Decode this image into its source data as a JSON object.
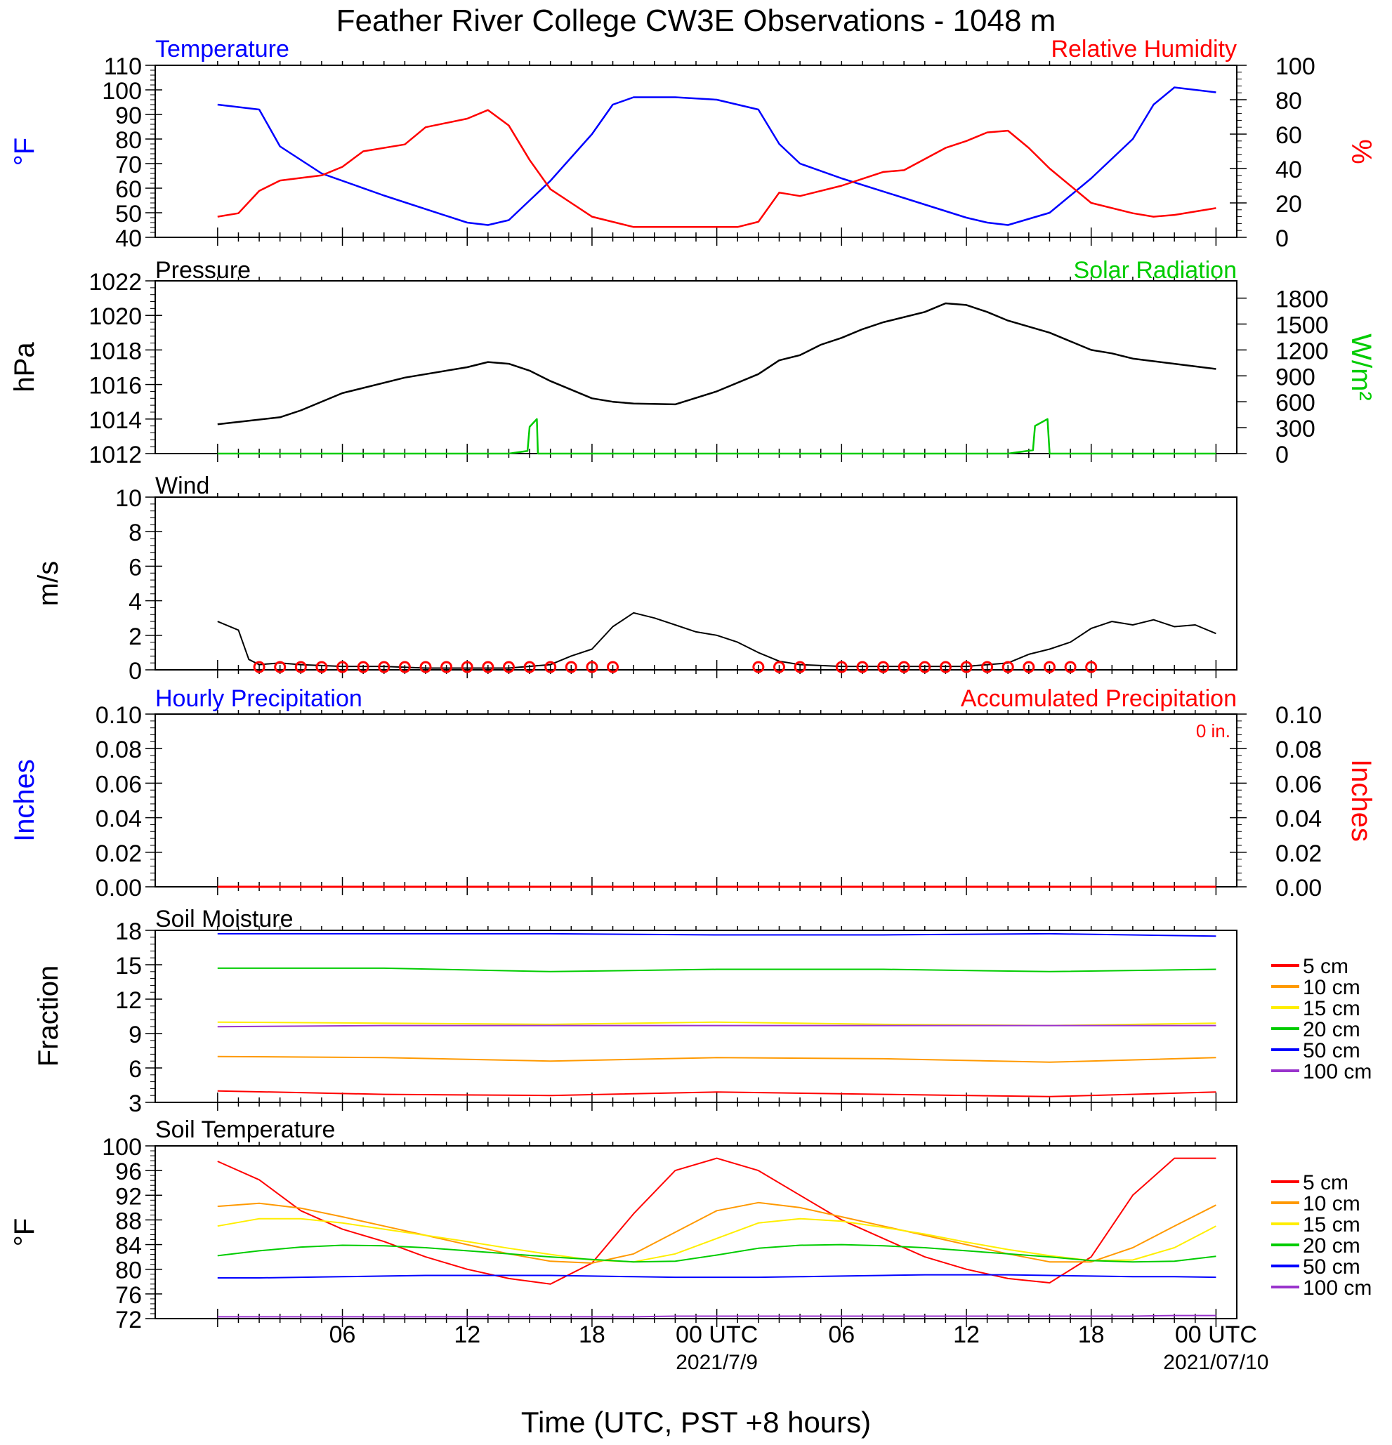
{
  "title": "Feather River College CW3E Observations - 1048 m",
  "x_axis": {
    "ticks": [
      "06",
      "12",
      "18",
      "00 UTC",
      "06",
      "12",
      "18",
      "00 UTC"
    ],
    "dates": [
      "2021/7/9",
      "2021/07/10"
    ],
    "label": "Time (UTC, PST +8 hours)"
  },
  "colors": {
    "blue": "#0000ff",
    "red": "#ff0000",
    "green": "#00cc00",
    "black": "#000000",
    "orange": "#ff9900",
    "yellow": "#ffee00",
    "purple": "#9933cc"
  },
  "chart_data": [
    {
      "type": "line",
      "name_left": "Temperature",
      "name_right": "Relative Humidity",
      "ylabel_left": "°F",
      "ylabel_right": "%",
      "ylim_left": [
        40,
        110
      ],
      "ylim_right": [
        0,
        100
      ],
      "yticks_left": [
        "110",
        "100",
        "90",
        "80",
        "70",
        "60",
        "50",
        "40"
      ],
      "yticks_right": [
        "100",
        "80",
        "60",
        "40",
        "20",
        "0"
      ],
      "x_hours": [
        0,
        2,
        3,
        5,
        8,
        12,
        13,
        14,
        16,
        18,
        19,
        20,
        22,
        24,
        26,
        27,
        28,
        30,
        33,
        36,
        37,
        38,
        40,
        42,
        44,
        45,
        46,
        48
      ],
      "temperature": [
        94,
        92,
        77,
        66,
        57,
        46,
        45,
        47,
        63,
        82,
        94,
        97,
        97,
        96,
        92,
        78,
        70,
        64,
        56,
        48,
        46,
        45,
        50,
        64,
        80,
        94,
        101,
        99
      ],
      "rh_hours": [
        0,
        1,
        2,
        3,
        5,
        6,
        7,
        9,
        10,
        12,
        13,
        14,
        15,
        16,
        17,
        18,
        20,
        22,
        24,
        25,
        26,
        27,
        28,
        30,
        31,
        32,
        33,
        35,
        36,
        37,
        38,
        39,
        40,
        42,
        44,
        45,
        46,
        48
      ],
      "relative_humidity": [
        12,
        14,
        27,
        33,
        36,
        41,
        50,
        54,
        64,
        69,
        74,
        65,
        45,
        28,
        20,
        12,
        6,
        6,
        6,
        6,
        9,
        26,
        24,
        30,
        34,
        38,
        39,
        52,
        56,
        61,
        62,
        52,
        40,
        20,
        14,
        12,
        13,
        17
      ]
    },
    {
      "type": "line",
      "name_left": "Pressure",
      "name_right": "Solar Radiation",
      "ylabel_left": "hPa",
      "ylabel_right": "W/m²",
      "ylim_left": [
        1012,
        1022
      ],
      "ylim_right": [
        0,
        2000
      ],
      "yticks_left": [
        "1022",
        "1020",
        "1018",
        "1016",
        "1014",
        "1012"
      ],
      "yticks_right": [
        "1800",
        "1500",
        "1200",
        "900",
        "600",
        "300",
        "0"
      ],
      "x_hours": [
        0,
        3,
        4,
        6,
        9,
        12,
        13,
        14,
        15,
        16,
        18,
        19,
        20,
        22,
        24,
        26,
        27,
        28,
        29,
        30,
        31,
        32,
        34,
        35,
        36,
        37,
        38,
        40,
        42,
        43,
        44,
        46,
        48
      ],
      "pressure": [
        1013.7,
        1014.1,
        1014.5,
        1015.5,
        1016.4,
        1017.0,
        1017.3,
        1017.2,
        1016.8,
        1016.2,
        1015.2,
        1015.0,
        1014.9,
        1014.85,
        1015.6,
        1016.6,
        1017.4,
        1017.7,
        1018.3,
        1018.7,
        1019.2,
        1019.6,
        1020.2,
        1020.7,
        1020.6,
        1020.2,
        1019.7,
        1019.0,
        1018.0,
        1017.8,
        1017.5,
        1017.2,
        1016.9
      ],
      "radiation_hours": [
        0,
        6,
        14,
        14.9,
        15,
        15.35,
        15.4,
        30,
        38,
        39.2,
        39.3,
        39.9,
        40,
        48
      ],
      "solar_radiation": [
        0,
        0,
        0,
        30,
        310,
        400,
        0,
        0,
        0,
        40,
        320,
        400,
        0,
        0
      ]
    },
    {
      "type": "line",
      "name": "Wind",
      "ylabel": "m/s",
      "ylim": [
        0,
        10
      ],
      "yticks": [
        "10",
        "8",
        "6",
        "4",
        "2",
        "0"
      ],
      "x_hours": [
        0,
        1,
        1.5,
        2,
        3,
        4,
        6,
        8,
        10,
        12,
        14,
        16,
        17,
        18,
        19,
        20,
        21,
        22,
        23,
        24,
        25,
        26,
        27,
        28,
        30,
        32,
        34,
        36,
        38,
        39,
        40,
        41,
        42,
        43,
        44,
        45,
        46,
        47,
        48
      ],
      "speed": [
        2.8,
        2.3,
        0.6,
        0.3,
        0.4,
        0.3,
        0.2,
        0.2,
        0.1,
        0.1,
        0.1,
        0.3,
        0.8,
        1.2,
        2.5,
        3.3,
        3.0,
        2.6,
        2.2,
        2.0,
        1.6,
        1.0,
        0.5,
        0.3,
        0.2,
        0.2,
        0.2,
        0.2,
        0.4,
        0.9,
        1.2,
        1.6,
        2.4,
        2.8,
        2.6,
        2.9,
        2.5,
        2.6,
        2.1
      ],
      "calm_hours": [
        2,
        3,
        4,
        5,
        6,
        7,
        8,
        9,
        10,
        11,
        12,
        13,
        14,
        15,
        16,
        17,
        18,
        19,
        26,
        27,
        28,
        30,
        31,
        32,
        33,
        34,
        35,
        36,
        37,
        38,
        39,
        40,
        41,
        42
      ]
    },
    {
      "type": "line",
      "name_left": "Hourly Precipitation",
      "name_right": "Accumulated Precipitation",
      "annotation": "0 in.",
      "ylabel_left": "Inches",
      "ylabel_right": "Inches",
      "ylim": [
        0,
        0.1
      ],
      "yticks_left": [
        "0.10",
        "0.08",
        "0.06",
        "0.04",
        "0.02",
        "0.00"
      ],
      "yticks_right": [
        "0.10",
        "0.08",
        "0.06",
        "0.04",
        "0.02",
        "0.00"
      ],
      "x_hours": [
        0,
        48
      ],
      "hourly": [
        0,
        0
      ],
      "accumulated": [
        0,
        0
      ]
    },
    {
      "type": "line",
      "name": "Soil Moisture",
      "ylabel": "Fraction",
      "ylim": [
        3,
        18
      ],
      "yticks": [
        "18",
        "15",
        "12",
        "9",
        "6",
        "3"
      ],
      "legend": [
        "5 cm",
        "10 cm",
        "15 cm",
        "20 cm",
        "50 cm",
        "100 cm"
      ],
      "x_hours": [
        0,
        8,
        16,
        24,
        32,
        40,
        48
      ],
      "series": [
        {
          "name": "5 cm",
          "values": [
            4.0,
            3.7,
            3.6,
            3.9,
            3.7,
            3.5,
            3.9
          ]
        },
        {
          "name": "10 cm",
          "values": [
            7.0,
            6.9,
            6.6,
            6.9,
            6.8,
            6.5,
            6.9
          ]
        },
        {
          "name": "15 cm",
          "values": [
            10.0,
            9.9,
            9.8,
            10.0,
            9.8,
            9.7,
            9.9
          ]
        },
        {
          "name": "20 cm",
          "values": [
            14.7,
            14.7,
            14.4,
            14.6,
            14.6,
            14.4,
            14.6
          ]
        },
        {
          "name": "50 cm",
          "values": [
            17.7,
            17.7,
            17.7,
            17.6,
            17.6,
            17.7,
            17.5
          ]
        },
        {
          "name": "100 cm",
          "values": [
            9.6,
            9.7,
            9.7,
            9.7,
            9.7,
            9.7,
            9.7
          ]
        }
      ]
    },
    {
      "type": "line",
      "name": "Soil Temperature",
      "ylabel": "°F",
      "ylim": [
        72,
        100
      ],
      "yticks": [
        "100",
        "96",
        "92",
        "88",
        "84",
        "80",
        "76",
        "72"
      ],
      "legend": [
        "5 cm",
        "10 cm",
        "15 cm",
        "20 cm",
        "50 cm",
        "100 cm"
      ],
      "x_hours": [
        0,
        2,
        4,
        6,
        8,
        10,
        12,
        14,
        16,
        18,
        20,
        22,
        24,
        26,
        28,
        30,
        32,
        34,
        36,
        38,
        40,
        42,
        44,
        46,
        48
      ],
      "series": [
        {
          "name": "5 cm",
          "values": [
            97.5,
            94.5,
            89.5,
            86.5,
            84.5,
            82,
            80,
            78.5,
            77.6,
            81,
            89,
            96,
            98,
            96,
            92,
            88,
            85,
            82,
            80,
            78.5,
            77.8,
            82,
            92,
            98,
            98
          ]
        },
        {
          "name": "10 cm",
          "values": [
            90.2,
            90.7,
            89.9,
            88.5,
            87,
            85.5,
            84,
            82.5,
            81.3,
            81,
            82.5,
            86,
            89.5,
            90.8,
            90,
            88.5,
            87,
            85.5,
            84,
            82.5,
            81.2,
            81.2,
            83.5,
            87,
            90.4
          ]
        },
        {
          "name": "15 cm",
          "values": [
            87,
            88.2,
            88.2,
            87.5,
            86.5,
            85.5,
            84.5,
            83.4,
            82.4,
            81.5,
            81.2,
            82.5,
            85,
            87.5,
            88.2,
            87.8,
            86.8,
            85.7,
            84.4,
            83.2,
            82.2,
            81.4,
            81.5,
            83.5,
            87
          ]
        },
        {
          "name": "20 cm",
          "values": [
            82.2,
            83,
            83.6,
            83.9,
            83.8,
            83.5,
            83,
            82.5,
            82,
            81.6,
            81.2,
            81.3,
            82.3,
            83.4,
            83.9,
            84,
            83.8,
            83.5,
            83,
            82.5,
            82,
            81.4,
            81.2,
            81.3,
            82.1
          ]
        },
        {
          "name": "50 cm",
          "values": [
            78.6,
            78.6,
            78.7,
            78.8,
            78.9,
            79,
            79,
            79,
            79,
            78.9,
            78.8,
            78.7,
            78.7,
            78.7,
            78.8,
            78.9,
            79,
            79.1,
            79.1,
            79.1,
            79,
            78.9,
            78.8,
            78.8,
            78.7
          ]
        },
        {
          "name": "100 cm",
          "values": [
            72.3,
            72.3,
            72.3,
            72.3,
            72.3,
            72.3,
            72.3,
            72.3,
            72.3,
            72.3,
            72.3,
            72.4,
            72.4,
            72.4,
            72.4,
            72.4,
            72.4,
            72.4,
            72.4,
            72.4,
            72.4,
            72.4,
            72.4,
            72.5,
            72.5
          ]
        }
      ]
    }
  ]
}
